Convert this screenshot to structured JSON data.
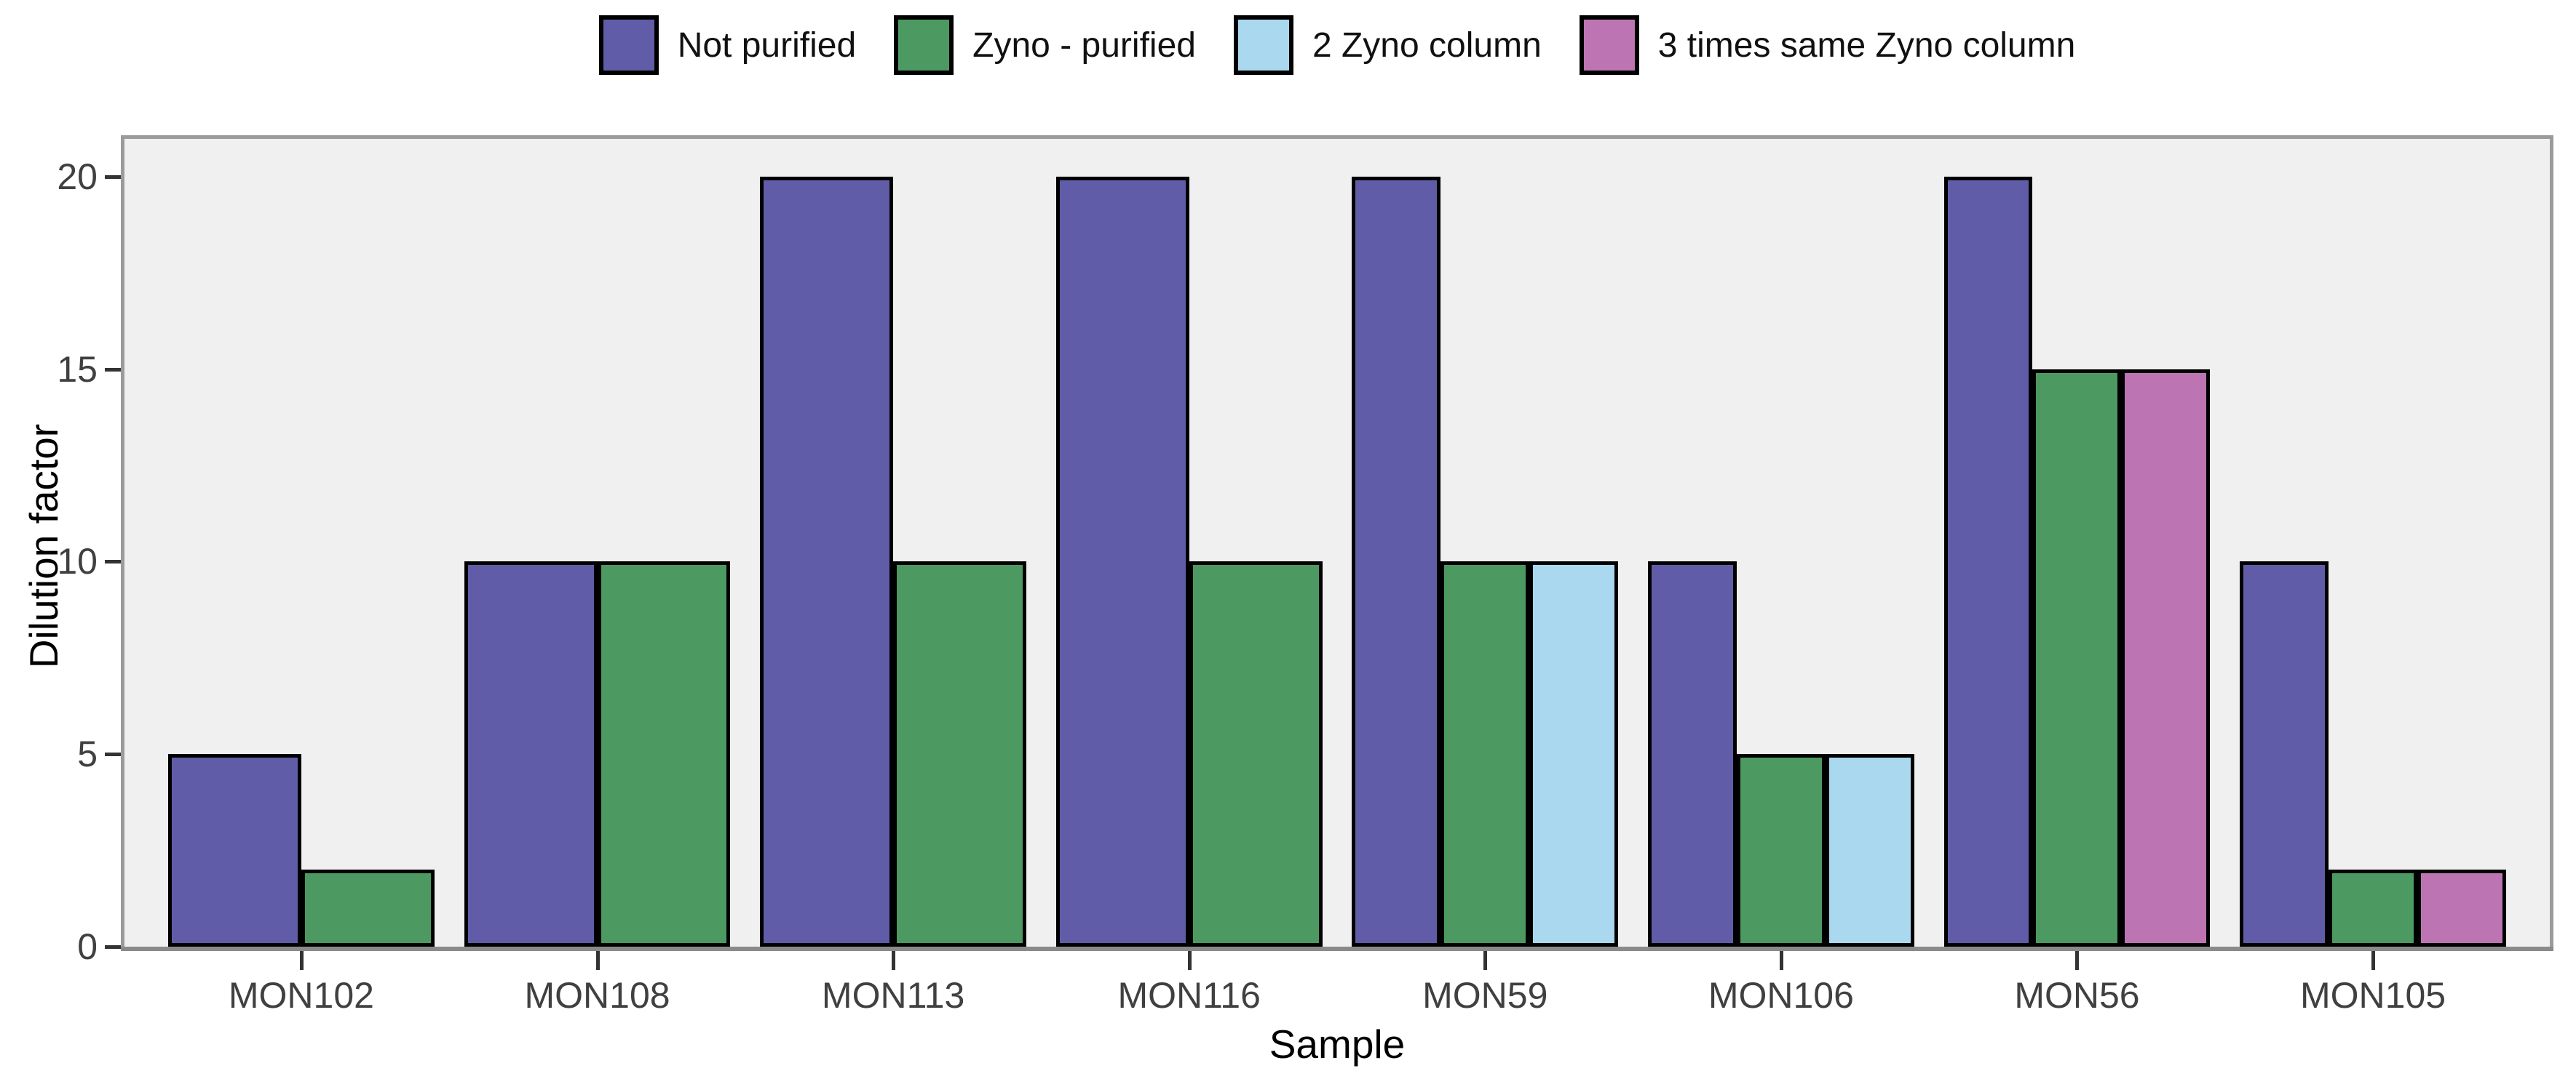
{
  "chart_data": {
    "type": "bar",
    "title": "",
    "xlabel": "Sample",
    "ylabel": "Dilution factor",
    "categories": [
      "MON102",
      "MON108",
      "MON113",
      "MON116",
      "MON59",
      "MON106",
      "MON56",
      "MON105"
    ],
    "series": [
      {
        "name": "Not purified",
        "color": "#615CA7",
        "values": [
          5,
          10,
          20,
          20,
          20,
          10,
          20,
          10
        ]
      },
      {
        "name": "Zyno - purified",
        "color": "#4C9962",
        "values": [
          2,
          10,
          10,
          10,
          10,
          5,
          15,
          2
        ]
      },
      {
        "name": "2 Zyno column",
        "color": "#A9D8EF",
        "values": [
          null,
          null,
          null,
          null,
          10,
          5,
          null,
          null
        ]
      },
      {
        "name": "3 times same Zyno column",
        "color": "#BC75B2",
        "values": [
          null,
          null,
          null,
          null,
          null,
          null,
          15,
          2
        ]
      }
    ],
    "y_ticks": [
      0,
      5,
      10,
      15,
      20
    ],
    "ylim": [
      0,
      21
    ],
    "grid": false,
    "legend_position": "top",
    "panel_background": "#F0F0F0",
    "bar_outline": "#000000",
    "bar_group_fraction": 0.9
  }
}
